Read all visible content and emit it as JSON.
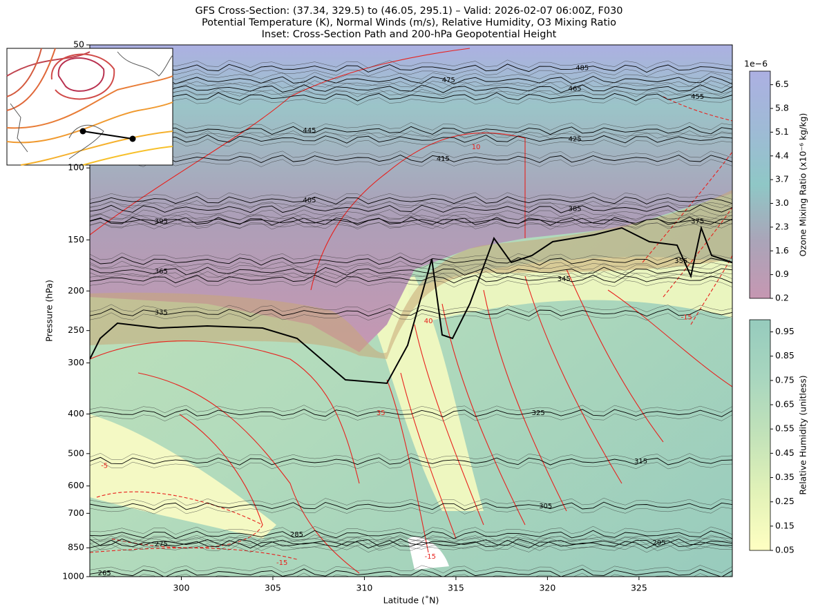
{
  "chart_data": {
    "type": "contour",
    "title_lines": [
      "GFS Cross-Section: (37.34, 329.5) to (46.05, 295.1) – Valid: 2026-02-07 06:00Z, F030",
      "Potential Temperature (K), Normal Winds (m/s), Relative Humidity, O3 Mixing Ratio",
      "Inset: Cross-Section Path and 200-hPa Geopotential Height"
    ],
    "x_label": "Latitude (˚N)",
    "y_label": "Pressure (hPa)",
    "xlim": [
      295.0,
      330.1
    ],
    "xticks": [
      300,
      305,
      310,
      315,
      320,
      325
    ],
    "ylim": [
      1000,
      50
    ],
    "log_y": true,
    "yticks": [
      50,
      100,
      150,
      200,
      250,
      300,
      400,
      500,
      600,
      700,
      850,
      1000
    ],
    "theta_labels": [
      {
        "value": 475,
        "lat": 314.6,
        "p": 61
      },
      {
        "value": 485,
        "lat": 321.9,
        "p": 57
      },
      {
        "value": 465,
        "lat": 321.5,
        "p": 64
      },
      {
        "value": 455,
        "lat": 328.2,
        "p": 67
      },
      {
        "value": 445,
        "lat": 307.0,
        "p": 81
      },
      {
        "value": 425,
        "lat": 321.5,
        "p": 85
      },
      {
        "value": 415,
        "lat": 314.3,
        "p": 95
      },
      {
        "value": 405,
        "lat": 307.0,
        "p": 120
      },
      {
        "value": 385,
        "lat": 321.5,
        "p": 126
      },
      {
        "value": 375,
        "lat": 328.2,
        "p": 135
      },
      {
        "value": 395,
        "lat": 298.9,
        "p": 135
      },
      {
        "value": 365,
        "lat": 298.9,
        "p": 179
      },
      {
        "value": 355,
        "lat": 327.3,
        "p": 169
      },
      {
        "value": 345,
        "lat": 320.9,
        "p": 187
      },
      {
        "value": 335,
        "lat": 298.9,
        "p": 226
      },
      {
        "value": 325,
        "lat": 319.5,
        "p": 398
      },
      {
        "value": 315,
        "lat": 325.1,
        "p": 522
      },
      {
        "value": 305,
        "lat": 319.9,
        "p": 672
      },
      {
        "value": 295,
        "lat": 326.1,
        "p": 826
      },
      {
        "value": 285,
        "lat": 306.3,
        "p": 789
      },
      {
        "value": 275,
        "lat": 298.9,
        "p": 833
      },
      {
        "value": 265,
        "lat": 295.8,
        "p": 980
      }
    ],
    "wind_labels": [
      {
        "value": -15,
        "lat": 313.6,
        "p": 893
      },
      {
        "value": -15,
        "lat": 327.6,
        "p": 232
      },
      {
        "value": 40,
        "lat": 313.5,
        "p": 237
      },
      {
        "value": 35,
        "lat": 310.9,
        "p": 398
      },
      {
        "value": 10,
        "lat": 316.1,
        "p": 89
      },
      {
        "value": -5,
        "lat": 295.8,
        "p": 536
      },
      {
        "value": -15,
        "lat": 305.5,
        "p": 925
      }
    ],
    "colorbars": [
      {
        "label": "Ozone Mixing Ratio (x10⁻⁶ kg/kg)",
        "offset_label": "1e−6",
        "clim": [
          0.2,
          6.9
        ],
        "colors": [
          "#c697b2",
          "#aaa4b8",
          "#8fc7c6",
          "#9fbad6",
          "#acb0e2"
        ],
        "ticks": [
          0.2,
          0.9,
          1.6,
          2.3,
          {
            "value": 3.0,
            "label": "3.0"
          },
          3.7,
          4.4,
          5.1,
          5.8,
          6.5
        ]
      },
      {
        "label": "Relative Humidity (unitless)",
        "clim": [
          0.05,
          1.0
        ],
        "colors": [
          "#ffffc2",
          "#e2f2b8",
          "#c2e2b9",
          "#a8d6bf",
          "#96cbbd"
        ],
        "ticks": [
          0.05,
          0.15,
          0.25,
          0.35,
          0.45,
          0.55,
          0.65,
          0.75,
          0.85,
          0.95
        ]
      }
    ]
  }
}
